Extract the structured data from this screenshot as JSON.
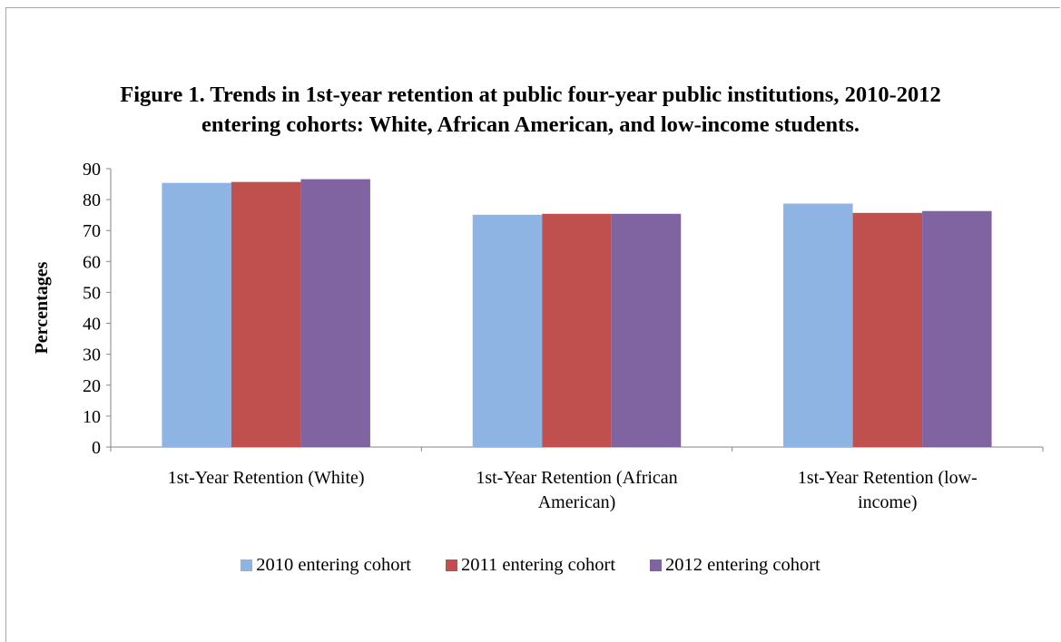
{
  "chart_data": {
    "type": "bar",
    "title_lines": [
      "Figure 1. Trends in 1st-year retention at public four-year public institutions, 2010-2012",
      "entering cohorts: White, African American, and low-income students."
    ],
    "xlabel": "",
    "ylabel": "Percentages",
    "ylim": [
      0,
      90
    ],
    "yticks": [
      "0",
      "10",
      "20",
      "30",
      "40",
      "50",
      "60",
      "70",
      "80",
      "90"
    ],
    "categories": [
      [
        "1st-Year Retention (White)"
      ],
      [
        "1st-Year Retention (African",
        "American)"
      ],
      [
        "1st-Year Retention (low-",
        "income)"
      ]
    ],
    "series": [
      {
        "name": "2010 entering cohort",
        "color": "#8EB4E3",
        "values": [
          85.4,
          75.1,
          78.7
        ]
      },
      {
        "name": "2011 entering cohort",
        "color": "#C0504D",
        "values": [
          85.7,
          75.4,
          75.7
        ]
      },
      {
        "name": "2012 entering cohort",
        "color": "#8064A2",
        "values": [
          86.6,
          75.4,
          76.3
        ]
      }
    ],
    "legend_position": "bottom",
    "grid": false
  }
}
